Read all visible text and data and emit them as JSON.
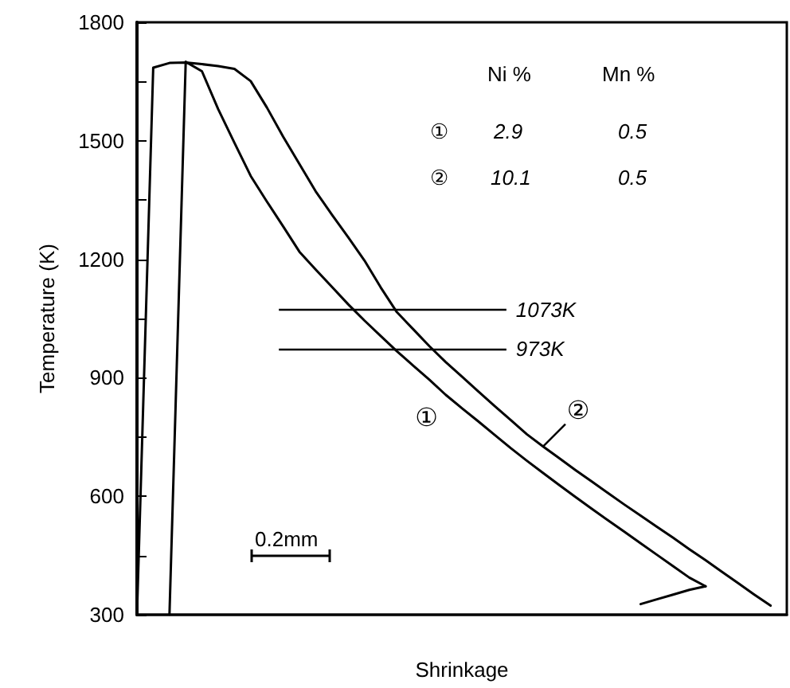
{
  "chart_data": {
    "type": "line",
    "xlabel": "Shrinkage",
    "ylabel": "Temperature (K)",
    "categories": [
      null,
      null,
      null,
      null,
      null,
      null,
      null,
      null,
      null,
      null,
      null,
      null,
      null,
      null,
      null,
      null,
      null,
      null,
      null,
      null,
      null,
      null,
      null,
      null,
      null,
      null,
      null,
      null,
      null,
      null,
      null,
      null,
      null,
      null,
      null,
      null,
      null,
      null,
      null,
      null,
      null
    ],
    "ylim": [
      300,
      1800
    ],
    "yticks": [
      300,
      {
        "value": 450,
        "label": null
      },
      600,
      {
        "value": 750,
        "label": null
      },
      900,
      {
        "value": 1050,
        "label": null
      },
      1200,
      {
        "value": 1350,
        "label": null
      },
      1500,
      {
        "value": 1650,
        "label": null
      },
      1800
    ],
    "tick_labels": "y",
    "grid": false,
    "marker": "none",
    "line_style": "solid",
    "series": [
      {
        "name": "①",
        "color": "#000000",
        "values": [
          null,
          null,
          300,
          1700,
          1676,
          1580,
          1495,
          1411,
          1346,
          1283,
          1219,
          1174,
          1130,
          1086,
          1045,
          1006,
          967,
          931,
          895,
          857,
          823,
          790,
          756,
          722,
          690,
          659,
          628,
          598,
          568,
          539,
          510,
          481,
          452,
          423,
          394,
          372,
          null,
          null,
          null,
          null,
          null
        ]
      },
      {
        "color": "#000000",
        "values": [
          null,
          null,
          null,
          null,
          null,
          null,
          null,
          null,
          null,
          null,
          null,
          null,
          null,
          null,
          null,
          null,
          null,
          null,
          null,
          null,
          null,
          null,
          null,
          null,
          null,
          null,
          null,
          null,
          null,
          null,
          null,
          327,
          339,
          351,
          363,
          372,
          null,
          null,
          null,
          null,
          null
        ]
      },
      {
        "name": "②",
        "color": "#000000",
        "values": [
          300,
          1685,
          1697,
          1698,
          1694,
          1689,
          1682,
          1651,
          1584,
          1510,
          1441,
          1372,
          1313,
          1256,
          1197,
          1129,
          1066,
          1023,
          980,
          940,
          903,
          866,
          829,
          793,
          757,
          726,
          696,
          666,
          637,
          608,
          579,
          551,
          523,
          495,
          466,
          438,
          409,
          380,
          351,
          323,
          null
        ]
      }
    ],
    "ref_lines": [
      {
        "axis": "y",
        "value": 1073,
        "label": "1073K"
      },
      {
        "axis": "y",
        "value": 973,
        "label": "973K"
      }
    ],
    "annotations": [
      "Ni %",
      "Mn %",
      "2.9",
      "0.5",
      "10.1",
      "0.5",
      "0.2mm"
    ]
  }
}
